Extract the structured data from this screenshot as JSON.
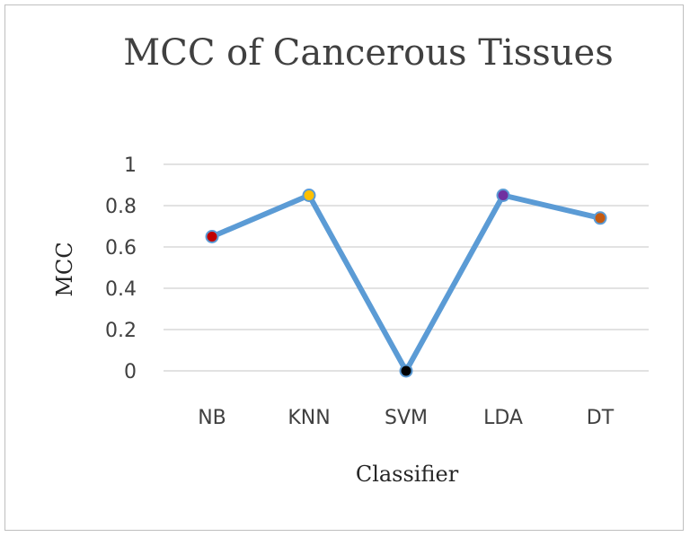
{
  "chart_data": {
    "type": "line",
    "title": "MCC of Cancerous Tissues",
    "xlabel": "Classifier",
    "ylabel": "MCC",
    "categories": [
      "NB",
      "KNN",
      "SVM",
      "LDA",
      "DT"
    ],
    "series": [
      {
        "values": [
          0.65,
          0.85,
          0.0,
          0.85,
          0.74
        ],
        "color": "#5b9bd5"
      }
    ],
    "marker_colors": [
      "#c00000",
      "#ffc000",
      "#000000",
      "#7030a0",
      "#c55a11"
    ],
    "yticks": [
      "0",
      "0.2",
      "0.4",
      "0.6",
      "0.8",
      "1"
    ],
    "ylim": [
      0,
      1
    ],
    "grid": true,
    "legend": false
  }
}
